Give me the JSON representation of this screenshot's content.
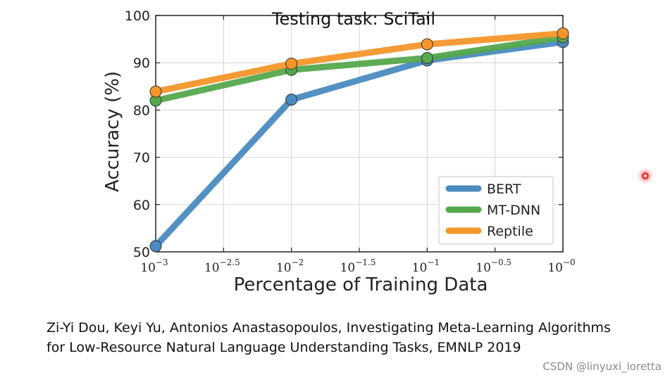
{
  "chart_data": {
    "type": "line",
    "title": "Testing task: SciTail",
    "xlabel": "Percentage of Training Data",
    "ylabel": "Accuracy (%)",
    "x": [
      -3,
      -2,
      -1,
      0
    ],
    "x_scale": "log10",
    "xlim": [
      -3,
      0
    ],
    "ylim": [
      50,
      100
    ],
    "xtick_labels": [
      {
        "base": "10",
        "exp": "−3"
      },
      {
        "base": "10",
        "exp": "−2.5"
      },
      {
        "base": "10",
        "exp": "−2"
      },
      {
        "base": "10",
        "exp": "−1.5"
      },
      {
        "base": "10",
        "exp": "−1"
      },
      {
        "base": "10",
        "exp": "−0.5"
      },
      {
        "base": "10",
        "exp": "−0"
      }
    ],
    "ytick_labels": [
      "50",
      "60",
      "70",
      "80",
      "90",
      "100"
    ],
    "grid": true,
    "legend_position": "lower-right",
    "series": [
      {
        "name": "BERT",
        "color": "#4a8bc0",
        "values": [
          51.2,
          82.2,
          90.5,
          94.4
        ]
      },
      {
        "name": "MT-DNN",
        "color": "#55a84c",
        "values": [
          82.0,
          88.5,
          91.0,
          95.4
        ]
      },
      {
        "name": "Reptile",
        "color": "#f4962a",
        "values": [
          83.9,
          89.8,
          93.9,
          96.2
        ]
      }
    ]
  },
  "citation": {
    "line1": "Zi-Yi Dou, Keyi Yu, Antonios Anastasopoulos, Investigating Meta-Learning Algorithms",
    "line2": "for Low-Resource Natural Language Understanding Tasks, EMNLP 2019"
  },
  "watermark": "CSDN @linyuxi_loretta"
}
